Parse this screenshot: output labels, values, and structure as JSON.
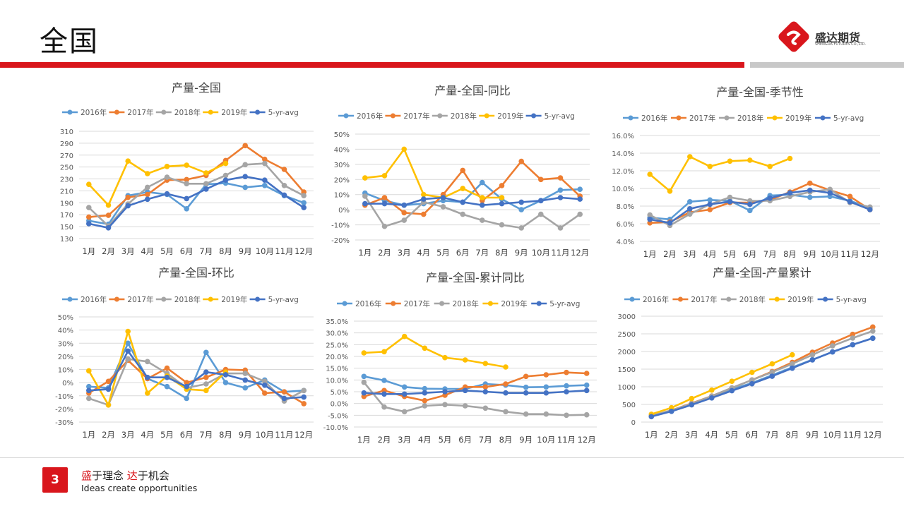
{
  "page": {
    "title": "全国",
    "page_number": "3",
    "brand_name": "盛达期货",
    "brand_sub": "SHENGDA FUTURES CO.,LTD.",
    "slogan": {
      "p1": "盛",
      "p2": "于理念 ",
      "p3": "达",
      "p4": "于机会"
    },
    "slogan_en": "Ideas create opportunities",
    "colors": {
      "accent": "#d9161c",
      "divider_grey": "#c8c8c8"
    }
  },
  "series_colors": {
    "2016年": "#5b9bd5",
    "2017年": "#ed7d31",
    "2018年": "#a5a5a5",
    "2019年": "#ffc000",
    "5-yr-avg": "#4472c4"
  },
  "chart_data": [
    {
      "type": "line",
      "title": "产量-全国",
      "categories": [
        "1月",
        "2月",
        "3月",
        "4月",
        "5月",
        "6月",
        "7月",
        "8月",
        "9月",
        "10月",
        "11月",
        "12月"
      ],
      "yticks": [
        "130",
        "150",
        "170",
        "190",
        "210",
        "230",
        "250",
        "270",
        "290",
        "310"
      ],
      "ylim": [
        130,
        310
      ],
      "grid": true,
      "legend": "top",
      "series": [
        {
          "name": "2016年",
          "values": [
            160,
            154,
            202,
            208,
            204,
            180,
            221,
            223,
            216,
            219,
            202,
            190
          ]
        },
        {
          "name": "2017年",
          "values": [
            166,
            169,
            199,
            204,
            228,
            229,
            236,
            261,
            286,
            263,
            246,
            208
          ]
        },
        {
          "name": "2018年",
          "values": [
            182,
            151,
            188,
            216,
            233,
            222,
            222,
            236,
            254,
            256,
            219,
            202
          ]
        },
        {
          "name": "2019年",
          "values": [
            221,
            186,
            260,
            239,
            251,
            253,
            240,
            256,
            null,
            null,
            null,
            null
          ]
        },
        {
          "name": "5-yr-avg",
          "values": [
            155,
            148,
            185,
            196,
            205,
            197,
            213,
            228,
            234,
            228,
            203,
            182
          ]
        }
      ]
    },
    {
      "type": "line",
      "title": "产量-全国-同比",
      "categories": [
        "1月",
        "2月",
        "3月",
        "4月",
        "5月",
        "6月",
        "7月",
        "8月",
        "9月",
        "10月",
        "11月",
        "12月"
      ],
      "yticks": [
        "-20%",
        "-10%",
        "0%",
        "10%",
        "20%",
        "30%",
        "40%",
        "50%"
      ],
      "ylim": [
        -20,
        50
      ],
      "grid": true,
      "legend": "top",
      "series": [
        {
          "name": "2016年",
          "values": [
            11,
            6,
            3,
            4,
            6,
            5,
            18,
            7,
            0,
            6,
            13,
            13.5
          ]
        },
        {
          "name": "2017年",
          "values": [
            3,
            8,
            -2,
            -3,
            10,
            26,
            6,
            16,
            32,
            20,
            21,
            9
          ]
        },
        {
          "name": "2018年",
          "values": [
            9,
            -11,
            -7,
            5,
            2,
            -3,
            -7,
            -10,
            -12,
            -3,
            -12,
            -3
          ]
        },
        {
          "name": "2019年",
          "values": [
            21,
            22.5,
            40,
            10,
            8,
            14,
            8,
            8,
            null,
            null,
            null,
            null
          ]
        },
        {
          "name": "5-yr-avg",
          "values": [
            4,
            4,
            3,
            7,
            8,
            5,
            3,
            4,
            5,
            6,
            8,
            7
          ]
        }
      ]
    },
    {
      "type": "line",
      "title": "产量-全国-季节性",
      "categories": [
        "1月",
        "2月",
        "3月",
        "4月",
        "5月",
        "6月",
        "7月",
        "8月",
        "9月",
        "10月",
        "11月",
        "12月"
      ],
      "yticks": [
        "4.0%",
        "6.0%",
        "8.0%",
        "10.0%",
        "12.0%",
        "14.0%",
        "16.0%"
      ],
      "ylim": [
        4,
        16
      ],
      "grid": true,
      "legend": "top",
      "series": [
        {
          "name": "2016年",
          "values": [
            6.7,
            6.5,
            8.5,
            8.7,
            8.6,
            7.5,
            9.2,
            9.3,
            9.0,
            9.1,
            8.6,
            7.8
          ]
        },
        {
          "name": "2017年",
          "values": [
            6.1,
            6.2,
            7.3,
            7.6,
            8.4,
            8.4,
            8.7,
            9.6,
            10.6,
            9.8,
            9.1,
            7.6
          ]
        },
        {
          "name": "2018年",
          "values": [
            7.0,
            5.8,
            7.1,
            8.2,
            9.0,
            8.6,
            8.6,
            9.1,
            9.6,
            9.9,
            8.4,
            7.9
          ]
        },
        {
          "name": "2019年",
          "values": [
            11.6,
            9.7,
            13.6,
            12.5,
            13.1,
            13.2,
            12.5,
            13.4,
            null,
            null,
            null,
            null
          ]
        },
        {
          "name": "5-yr-avg",
          "values": [
            6.5,
            6.1,
            7.7,
            8.2,
            8.5,
            8.2,
            8.9,
            9.5,
            9.8,
            9.5,
            8.5,
            7.6
          ]
        }
      ]
    },
    {
      "type": "line",
      "title": "产量-全国-环比",
      "categories": [
        "1月",
        "2月",
        "3月",
        "4月",
        "5月",
        "6月",
        "7月",
        "8月",
        "9月",
        "10月",
        "11月",
        "12月"
      ],
      "yticks": [
        "-30%",
        "-20%",
        "-10%",
        "0%",
        "10%",
        "20%",
        "30%",
        "40%",
        "50%"
      ],
      "ylim": [
        -30,
        50
      ],
      "grid": true,
      "legend": "top",
      "series": [
        {
          "name": "2016年",
          "values": [
            -3,
            -4,
            30,
            3,
            -3,
            -12,
            23,
            0,
            -4,
            2,
            -7,
            -6
          ]
        },
        {
          "name": "2017年",
          "values": [
            -8,
            1,
            17,
            3,
            11,
            0,
            4,
            10,
            9.5,
            -8,
            -7,
            -16
          ]
        },
        {
          "name": "2018年",
          "values": [
            -12,
            -17,
            18,
            16,
            7,
            -4,
            -1,
            7,
            7,
            1,
            -14,
            -6
          ]
        },
        {
          "name": "2019年",
          "values": [
            9,
            -17,
            39,
            -8,
            5,
            -5,
            -6,
            8,
            null,
            null,
            null,
            null
          ]
        },
        {
          "name": "5-yr-avg",
          "values": [
            -6,
            -5,
            24,
            4,
            4,
            -3,
            8,
            6,
            2,
            -2,
            -12,
            -11
          ]
        }
      ]
    },
    {
      "type": "line",
      "title": "产量-全国-累计同比",
      "categories": [
        "1月",
        "2月",
        "3月",
        "4月",
        "5月",
        "6月",
        "7月",
        "8月",
        "9月",
        "10月",
        "11月",
        "12月"
      ],
      "yticks": [
        "-10.0%",
        "-5.0%",
        "0.0%",
        "5.0%",
        "10.0%",
        "15.0%",
        "20.0%",
        "25.0%",
        "30.0%",
        "35.0%"
      ],
      "ylim": [
        -10,
        35
      ],
      "grid": true,
      "legend": "top",
      "series": [
        {
          "name": "2016年",
          "values": [
            11.5,
            9.8,
            7,
            6.3,
            6.2,
            6.2,
            8.3,
            7.8,
            6.9,
            7,
            7.5,
            7.8
          ]
        },
        {
          "name": "2017年",
          "values": [
            3,
            5.5,
            3,
            1.2,
            3.5,
            7,
            7,
            8.3,
            11.5,
            12.2,
            13.2,
            12.8
          ]
        },
        {
          "name": "2018年",
          "values": [
            9,
            -1.5,
            -3.5,
            -1,
            -0.5,
            -1,
            -2,
            -3.5,
            -4.5,
            -4.5,
            -5,
            -4.8
          ]
        },
        {
          "name": "2019年",
          "values": [
            21.5,
            22,
            28.5,
            23.5,
            19.5,
            18.5,
            17,
            15.5,
            null,
            null,
            null,
            null
          ]
        },
        {
          "name": "5-yr-avg",
          "values": [
            4.5,
            4,
            4,
            4.5,
            5,
            5.5,
            5,
            4.5,
            4.5,
            4.5,
            5,
            5.5
          ]
        }
      ]
    },
    {
      "type": "line",
      "title": "产量-全国-产量累计",
      "categories": [
        "1月",
        "2月",
        "3月",
        "4月",
        "5月",
        "6月",
        "7月",
        "8月",
        "9月",
        "10月",
        "11月",
        "12月"
      ],
      "yticks": [
        "0",
        "500",
        "1000",
        "1500",
        "2000",
        "2500",
        "3000"
      ],
      "ylim": [
        0,
        3000
      ],
      "grid": true,
      "legend": "top",
      "series": [
        {
          "name": "2016年",
          "values": [
            160,
            314,
            516,
            724,
            928,
            1108,
            1329,
            1552,
            1768,
            1987,
            2189,
            2379
          ]
        },
        {
          "name": "2017年",
          "values": [
            166,
            335,
            534,
            738,
            966,
            1195,
            1431,
            1692,
            1978,
            2241,
            2487,
            2695
          ]
        },
        {
          "name": "2018年",
          "values": [
            182,
            333,
            521,
            737,
            970,
            1192,
            1414,
            1650,
            1904,
            2160,
            2379,
            2581
          ]
        },
        {
          "name": "2019年",
          "values": [
            221,
            407,
            667,
            906,
            1157,
            1410,
            1650,
            1906,
            null,
            null,
            null,
            null
          ]
        },
        {
          "name": "5-yr-avg",
          "values": [
            155,
            303,
            488,
            684,
            889,
            1086,
            1299,
            1527,
            1761,
            1989,
            2192,
            2374
          ]
        }
      ]
    }
  ]
}
